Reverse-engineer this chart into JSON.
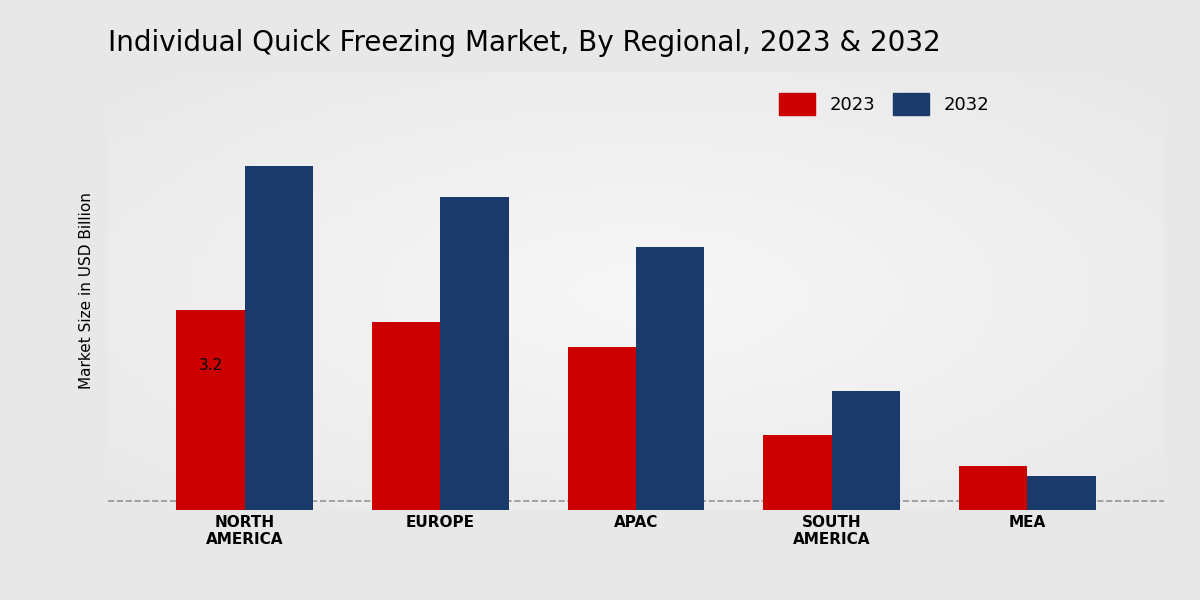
{
  "title": "Individual Quick Freezing Market, By Regional, 2023 & 2032",
  "ylabel": "Market Size in USD Billion",
  "categories": [
    "NORTH\nAMERICA",
    "EUROPE",
    "APAC",
    "SOUTH\nAMERICA",
    "MEA"
  ],
  "values_2023": [
    3.2,
    3.0,
    2.6,
    1.2,
    0.7
  ],
  "values_2032": [
    5.5,
    5.0,
    4.2,
    1.9,
    0.55
  ],
  "color_2023": "#cc0000",
  "color_2032": "#1a3a6b",
  "annotation_text": "3.2",
  "annotation_bar": 0,
  "bg_color": "#e8e8e8",
  "title_fontsize": 20,
  "label_fontsize": 11,
  "legend_fontsize": 13,
  "bar_width": 0.35,
  "ylim": [
    0,
    7
  ],
  "dashed_line_y": 0.15
}
